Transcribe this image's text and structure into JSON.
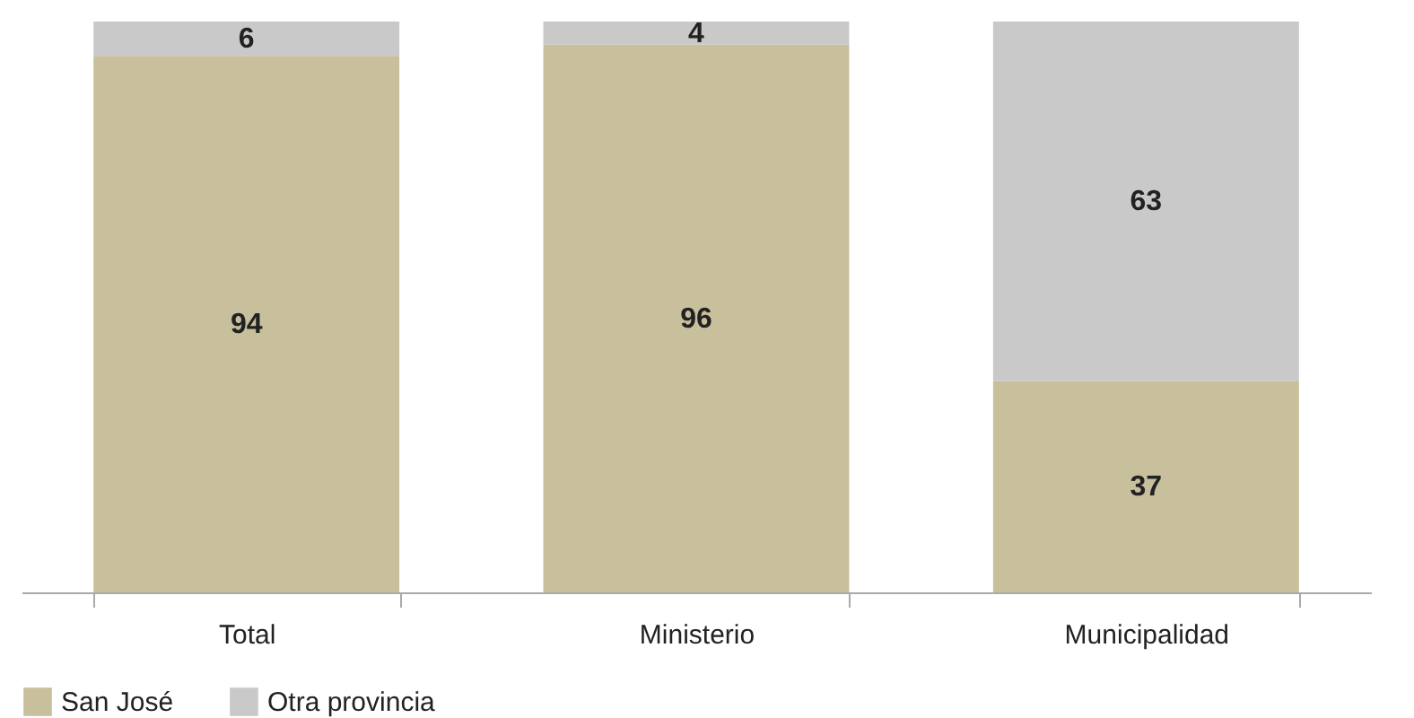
{
  "chart_data": {
    "type": "bar",
    "stacked": true,
    "data_labels": true,
    "legend": "bottom left",
    "categories": [
      "Total",
      "Ministerio",
      "Municipalidad"
    ],
    "series": [
      {
        "name": "San José",
        "color": "#c8bf9c",
        "values": [
          94,
          96,
          37
        ]
      },
      {
        "name": "Otra provincia",
        "color": "#c9c9c9",
        "values": [
          6,
          4,
          63
        ]
      }
    ]
  }
}
